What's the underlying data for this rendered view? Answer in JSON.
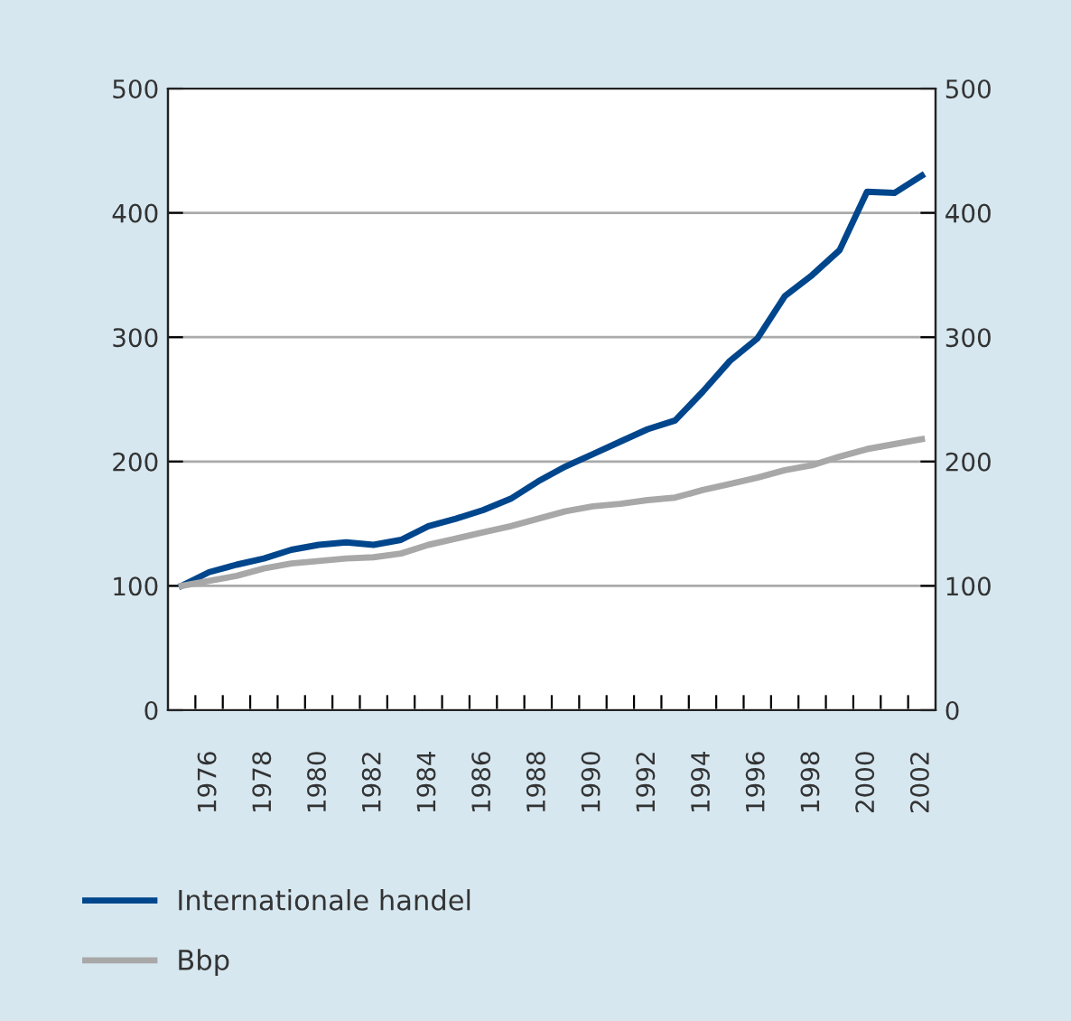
{
  "chart_data": {
    "type": "line",
    "x": [
      1975,
      1976,
      1977,
      1978,
      1979,
      1980,
      1981,
      1982,
      1983,
      1984,
      1985,
      1986,
      1987,
      1988,
      1989,
      1990,
      1991,
      1992,
      1993,
      1994,
      1995,
      1996,
      1997,
      1998,
      1999,
      2000,
      2001,
      2002
    ],
    "series": [
      {
        "name": "Internationale handel",
        "color": "#00468c",
        "values": [
          100,
          111,
          117,
          122,
          129,
          133,
          135,
          133,
          137,
          148,
          154,
          161,
          170,
          184,
          196,
          206,
          216,
          226,
          233,
          256,
          281,
          299,
          333,
          350,
          370,
          417,
          416,
          430
        ]
      },
      {
        "name": "Bbp",
        "color": "#a8a8a8",
        "values": [
          100,
          104,
          108,
          114,
          118,
          120,
          122,
          123,
          126,
          133,
          138,
          143,
          148,
          154,
          160,
          164,
          166,
          169,
          171,
          177,
          182,
          187,
          193,
          197,
          204,
          210,
          214,
          218
        ]
      }
    ],
    "xlim": [
      1974.5,
      2002.5
    ],
    "xticks": [
      {
        "value": 1975.5,
        "label": null
      },
      {
        "value": 1976,
        "label": "1976"
      },
      {
        "value": 1976.5,
        "label": null
      },
      {
        "value": 1977.5,
        "label": null
      },
      {
        "value": 1978,
        "label": "1978"
      },
      {
        "value": 1978.5,
        "label": null
      },
      {
        "value": 1979.5,
        "label": null
      },
      {
        "value": 1980,
        "label": "1980"
      },
      {
        "value": 1980.5,
        "label": null
      },
      {
        "value": 1981.5,
        "label": null
      },
      {
        "value": 1982,
        "label": "1982"
      },
      {
        "value": 1982.5,
        "label": null
      },
      {
        "value": 1983.5,
        "label": null
      },
      {
        "value": 1984,
        "label": "1984"
      },
      {
        "value": 1984.5,
        "label": null
      },
      {
        "value": 1985.5,
        "label": null
      },
      {
        "value": 1986,
        "label": "1986"
      },
      {
        "value": 1986.5,
        "label": null
      },
      {
        "value": 1987.5,
        "label": null
      },
      {
        "value": 1988,
        "label": "1988"
      },
      {
        "value": 1988.5,
        "label": null
      },
      {
        "value": 1989.5,
        "label": null
      },
      {
        "value": 1990,
        "label": "1990"
      },
      {
        "value": 1990.5,
        "label": null
      },
      {
        "value": 1991.5,
        "label": null
      },
      {
        "value": 1992,
        "label": "1992"
      },
      {
        "value": 1992.5,
        "label": null
      },
      {
        "value": 1993.5,
        "label": null
      },
      {
        "value": 1994,
        "label": "1994"
      },
      {
        "value": 1994.5,
        "label": null
      },
      {
        "value": 1995.5,
        "label": null
      },
      {
        "value": 1996,
        "label": "1996"
      },
      {
        "value": 1996.5,
        "label": null
      },
      {
        "value": 1997.5,
        "label": null
      },
      {
        "value": 1998,
        "label": "1998"
      },
      {
        "value": 1998.5,
        "label": null
      },
      {
        "value": 1999.5,
        "label": null
      },
      {
        "value": 2000,
        "label": "2000"
      },
      {
        "value": 2000.5,
        "label": null
      },
      {
        "value": 2001.5,
        "label": null
      },
      {
        "value": 2002,
        "label": "2002"
      }
    ],
    "ylim": [
      0,
      500
    ],
    "yticks": [
      0,
      100,
      200,
      300,
      400,
      500
    ],
    "y2lim": [
      0,
      500
    ],
    "y2ticks": [
      0,
      100,
      200,
      300,
      400,
      500
    ],
    "grid": "y",
    "legend": "bottom",
    "marker": "none",
    "line_style": "solid"
  }
}
